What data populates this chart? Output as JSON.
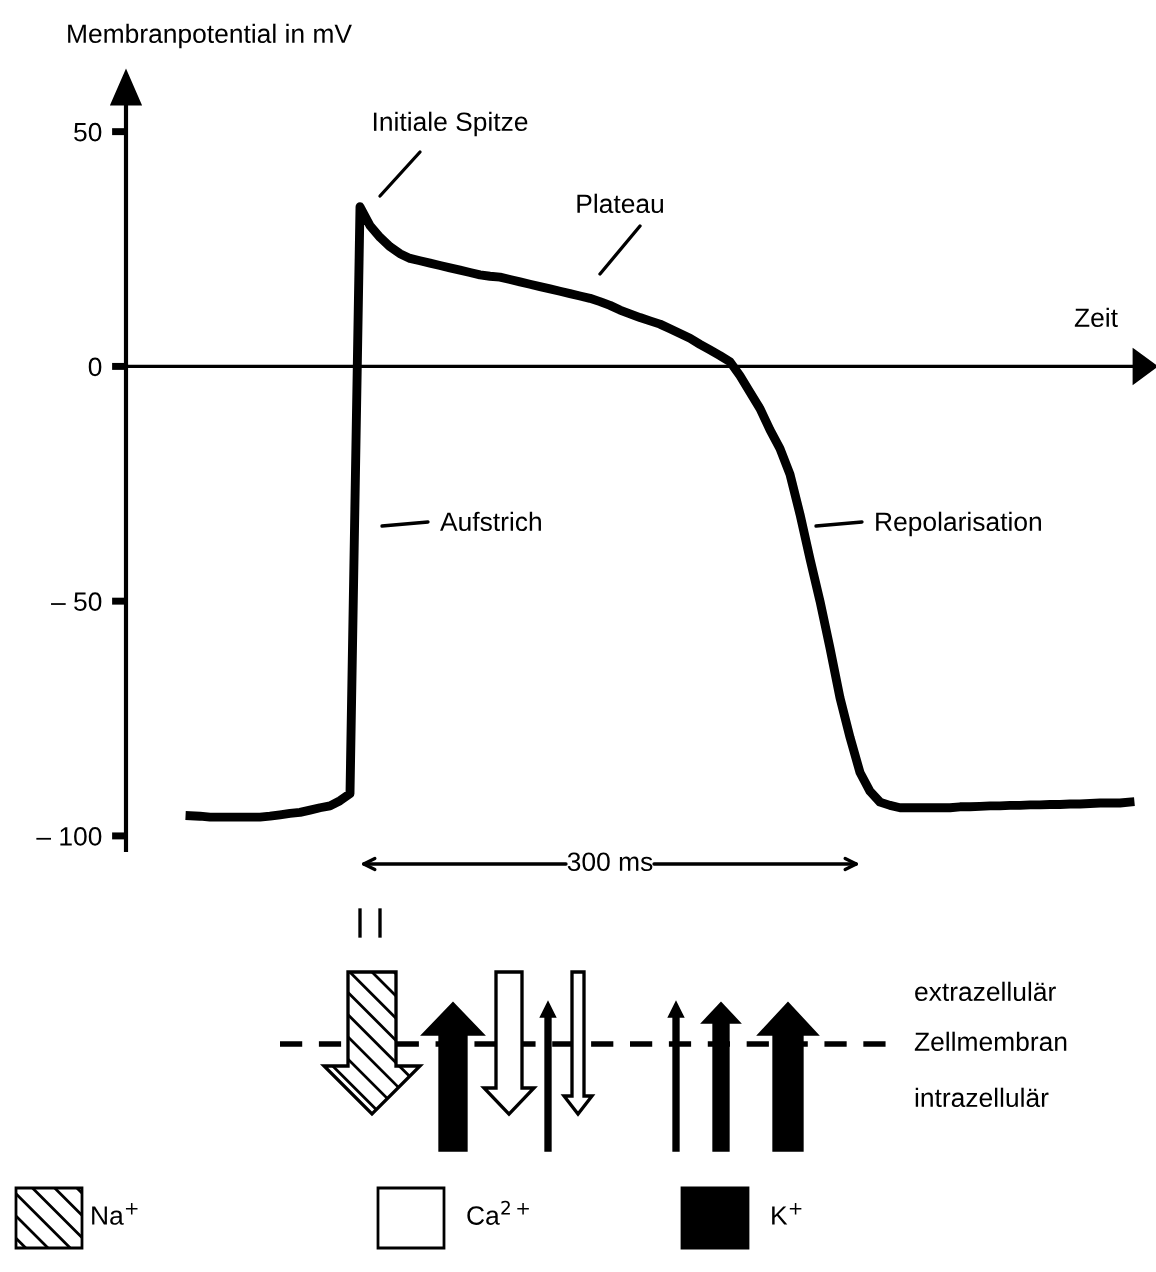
{
  "chart_data": {
    "type": "line",
    "ylabel": "Membranpotential in mV",
    "xlabel": "Zeit",
    "categories": [
      null,
      null,
      null,
      null,
      null,
      null,
      null,
      null,
      null,
      null,
      null,
      null,
      null,
      null,
      null,
      null,
      null,
      null,
      null,
      null,
      null,
      null,
      null,
      null,
      null,
      null,
      null,
      null,
      null,
      null,
      null,
      null,
      null,
      null,
      null,
      null,
      null,
      null,
      null,
      null,
      null,
      null,
      null,
      null,
      null,
      null,
      null,
      null,
      null,
      null,
      null,
      null,
      null,
      null,
      null,
      null,
      null,
      null,
      null,
      null,
      null,
      null,
      null,
      null,
      null,
      null,
      null,
      null,
      null,
      null,
      null,
      null,
      null,
      null,
      null,
      null,
      null,
      null,
      null,
      null,
      null,
      null,
      null,
      null,
      null,
      null,
      null,
      null,
      null,
      null,
      null,
      null,
      null,
      null,
      null
    ],
    "series": [
      {
        "color": "#000000",
        "values": [
          -95.7,
          -95.8,
          -96,
          -96,
          -96,
          -96,
          -96,
          -96,
          -95.8,
          -95.5,
          -95.2,
          -95,
          -94.5,
          -94,
          -93.6,
          -92.5,
          -91,
          34,
          30,
          27.5,
          25.5,
          24,
          23,
          22.5,
          22,
          21.5,
          21,
          20.5,
          20,
          19.5,
          19.2,
          19,
          18.5,
          18,
          17.5,
          17,
          16.5,
          16,
          15.5,
          15,
          14.5,
          13.8,
          13,
          12,
          11.2,
          10.4,
          9.7,
          9,
          8,
          7,
          6,
          4.7,
          3.5,
          2.3,
          1,
          -2,
          -5.5,
          -9,
          -13.5,
          -17.5,
          -23,
          -31.5,
          -41,
          -50,
          -60,
          -70.6,
          -79,
          -86.5,
          -90.5,
          -92.8,
          -93.5,
          -94,
          -94,
          -94,
          -94,
          -94,
          -94,
          -93.8,
          -93.8,
          -93.7,
          -93.6,
          -93.6,
          -93.5,
          -93.5,
          -93.4,
          -93.4,
          -93.3,
          -93.3,
          -93.2,
          -93.2,
          -93.1,
          -93,
          -93,
          -93,
          -92.8
        ]
      }
    ],
    "ylim": [
      -103,
      61
    ],
    "yticks": [
      50,
      0,
      {
        "value": -50,
        "label": "– 50"
      },
      {
        "value": -100,
        "label": "– 100"
      }
    ],
    "tick_labels": "y",
    "marker": "none",
    "line_style": "solid",
    "annotations": [
      "Initiale Spitze",
      "Plateau",
      "Aufstrich",
      "Repolarisation",
      "300 ms",
      "extrazellulär",
      "Zellmembran",
      "intrazellulär",
      "Na$^{+}$",
      "Ca$^{2+}$",
      "K$^{+}$"
    ]
  }
}
